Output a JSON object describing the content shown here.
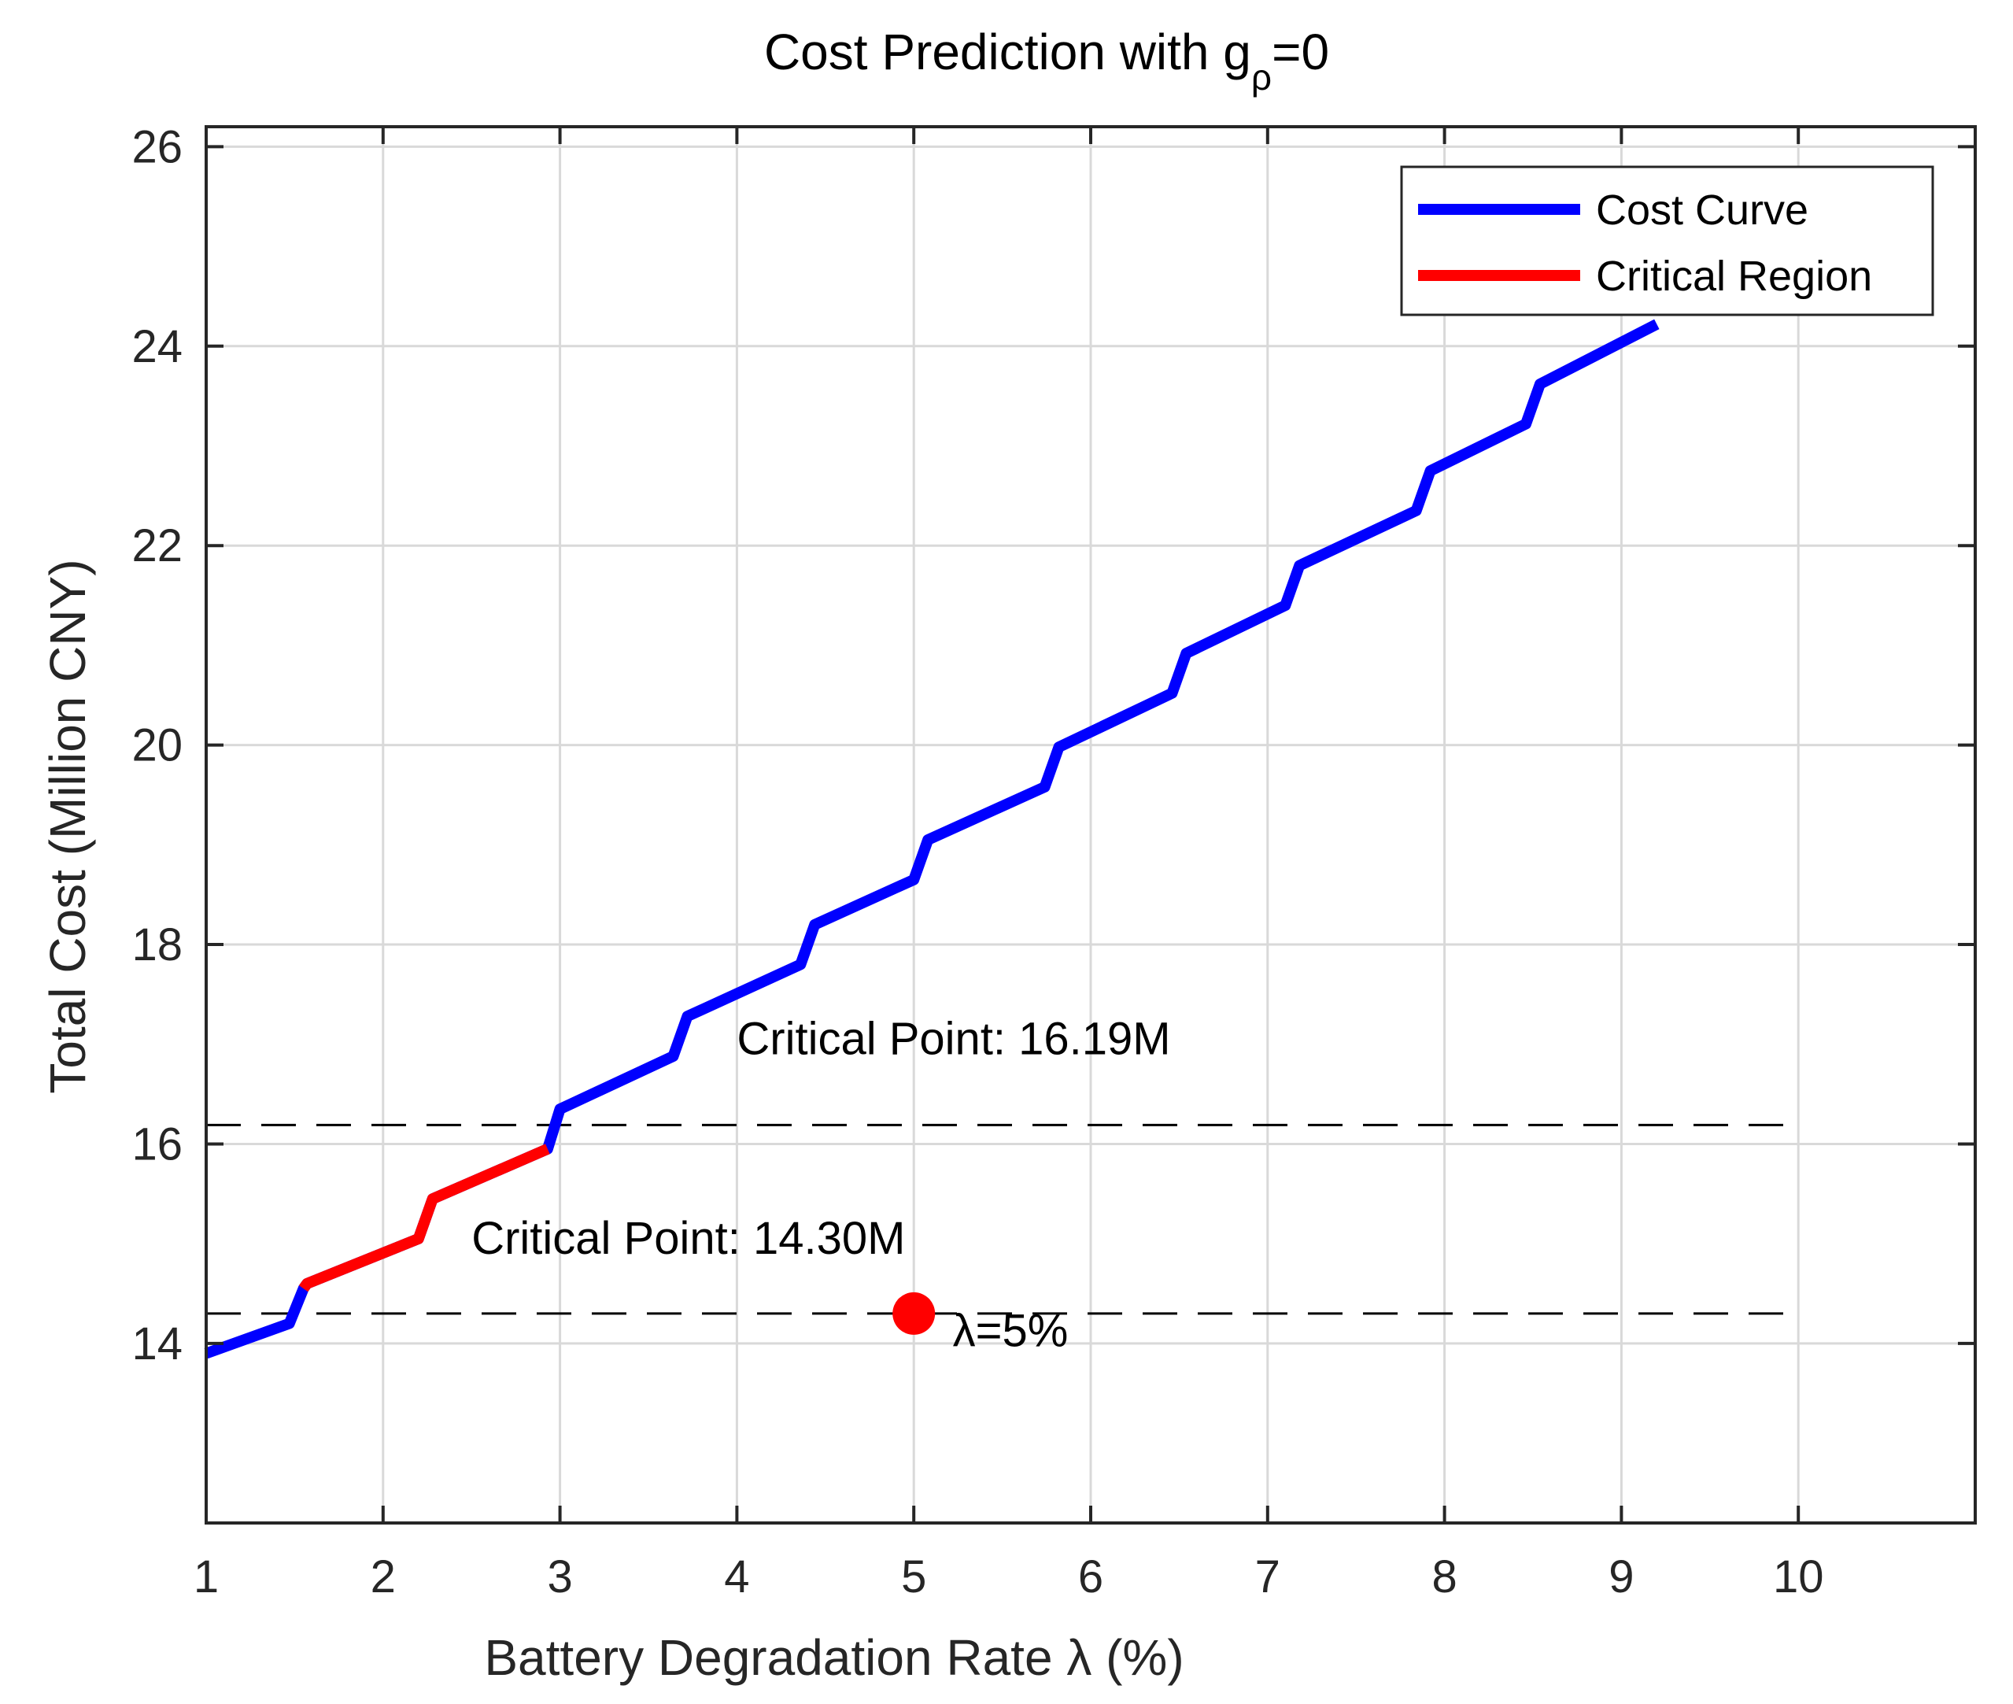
{
  "chart_data": {
    "type": "line",
    "title": {
      "prefix": "Cost Prediction with g",
      "subscript": "ρ",
      "suffix": "=0"
    },
    "xlabel": "Battery Degradation Rate λ (%)",
    "ylabel": "Total Cost (Million CNY)",
    "xlim": [
      1,
      11
    ],
    "ylim": [
      12.2,
      26.2
    ],
    "xticks": [
      1,
      2,
      3,
      4,
      5,
      6,
      7,
      8,
      9,
      10
    ],
    "yticks": [
      14,
      16,
      18,
      20,
      22,
      24,
      26
    ],
    "grid": true,
    "legend_position": "top-right",
    "colors": {
      "cost_curve": "#0000FF",
      "critical_region": "#FF0000",
      "point": "#FF0000",
      "reference_line": "#000000"
    },
    "series": [
      {
        "name": "Cost Curve",
        "color": "#0000FF",
        "x": [
          1.0,
          1.47,
          1.55,
          1.57,
          2.2,
          2.28,
          2.93,
          3.0,
          3.64,
          3.72,
          4.36,
          4.44,
          5.0,
          5.08,
          5.74,
          5.82,
          6.46,
          6.54,
          7.1,
          7.18,
          7.84,
          7.92,
          8.46,
          8.54,
          9.2
        ],
        "y": [
          13.9,
          14.2,
          14.55,
          14.6,
          15.05,
          15.45,
          15.95,
          16.35,
          16.88,
          17.28,
          17.8,
          18.2,
          18.65,
          19.05,
          19.58,
          19.98,
          20.52,
          20.92,
          21.4,
          21.8,
          22.35,
          22.75,
          23.22,
          23.62,
          24.22
        ]
      },
      {
        "name": "Critical Region",
        "color": "#FF0000",
        "x": [
          1.55,
          1.57,
          2.2,
          2.28,
          2.93
        ],
        "y": [
          14.55,
          14.6,
          15.05,
          15.45,
          15.95
        ]
      }
    ],
    "reference_lines": [
      {
        "y": 16.19,
        "x_start": 1,
        "x_end": 10,
        "style": "dashed",
        "label": "Critical Point: 16.19M",
        "label_x": 4.0,
        "label_y": 16.9
      },
      {
        "y": 14.3,
        "x_start": 1,
        "x_end": 10,
        "style": "dashed",
        "label": "Critical Point: 14.30M",
        "label_x": 2.5,
        "label_y": 14.9
      }
    ],
    "points": [
      {
        "x": 5,
        "y": 14.3,
        "color": "#FF0000",
        "label": "λ=5%",
        "label_x": 5.22,
        "label_y": 13.97
      }
    ],
    "legend": [
      "Cost Curve",
      "Critical Region"
    ]
  }
}
